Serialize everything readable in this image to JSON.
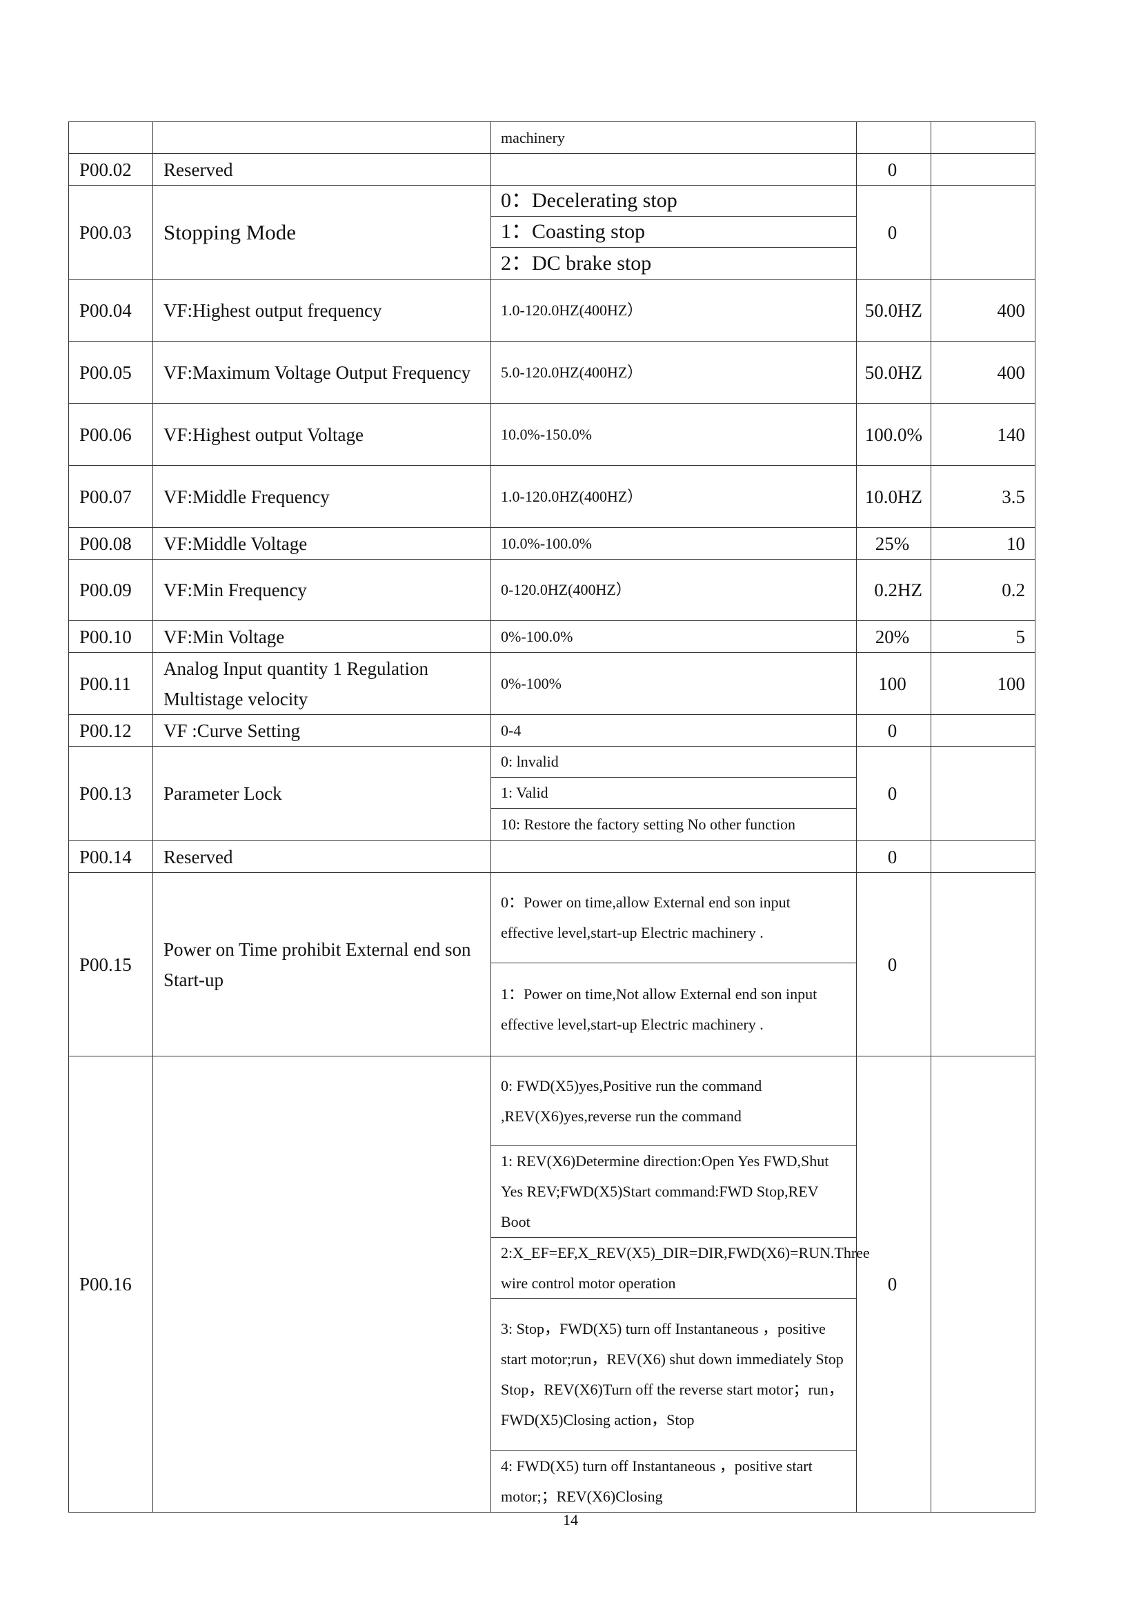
{
  "table": {
    "rows": [
      {
        "code": "",
        "name": "",
        "range": [
          "machinery"
        ],
        "default": "",
        "factory": ""
      },
      {
        "code": "P00.02",
        "name": "Reserved",
        "range": [],
        "default": "0",
        "factory": ""
      },
      {
        "code": "P00.03",
        "name": "Stopping Mode",
        "range": [
          "0：Decelerating stop",
          "1：Coasting stop",
          "2：DC brake stop"
        ],
        "default": "0",
        "factory": ""
      },
      {
        "code": "P00.04",
        "name": "VF:Highest output frequency",
        "range": [
          "1.0-120.0HZ(400HZ）"
        ],
        "default": "50.0HZ",
        "factory": "400"
      },
      {
        "code": "P00.05",
        "name": "VF:Maximum Voltage Output Frequency",
        "range": [
          "5.0-120.0HZ(400HZ）"
        ],
        "default": "50.0HZ",
        "factory": "400"
      },
      {
        "code": "P00.06",
        "name": "VF:Highest output Voltage",
        "range": [
          "10.0%-150.0%"
        ],
        "default": "100.0%",
        "factory": "140"
      },
      {
        "code": "P00.07",
        "name": "VF:Middle Frequency",
        "range": [
          "1.0-120.0HZ(400HZ）"
        ],
        "default": "10.0HZ",
        "factory": "3.5"
      },
      {
        "code": "P00.08",
        "name": "VF:Middle Voltage",
        "range": [
          "10.0%-100.0%"
        ],
        "default": "25%",
        "factory": "10"
      },
      {
        "code": "P00.09",
        "name": "VF:Min Frequency",
        "range": [
          "0-120.0HZ(400HZ）"
        ],
        "default": "0.2HZ",
        "factory": "0.2"
      },
      {
        "code": "P00.10",
        "name": "VF:Min Voltage",
        "range": [
          "0%-100.0%"
        ],
        "default": "20%",
        "factory": "5"
      },
      {
        "code": "P00.11",
        "name": "Analog Input quantity 1 Regulation Multistage velocity",
        "range": [
          "0%-100%"
        ],
        "default": "100",
        "factory": "100"
      },
      {
        "code": "P00.12",
        "name": "VF :Curve Setting",
        "range": [
          "0-4"
        ],
        "default": "0",
        "factory": ""
      },
      {
        "code": "P00.13",
        "name": "Parameter Lock",
        "range": [
          "0:    lnvalid",
          "1:    Valid",
          "10: Restore the factory setting No other function"
        ],
        "default": "0",
        "factory": ""
      },
      {
        "code": "P00.14",
        "name": "Reserved",
        "range": [],
        "default": "0",
        "factory": ""
      },
      {
        "code": "P00.15",
        "name": "Power on Time prohibit External end son Start-up",
        "range": [
          "0：Power on time,allow External end    son input effective level,start-up Electric machinery .",
          "1：Power on time,Not allow    External end son input effective level,start-up Electric machinery ."
        ],
        "default": "0",
        "factory": ""
      },
      {
        "code": "P00.16",
        "name": "",
        "range": [
          "0: FWD(X5)yes,Positive run the command ,REV(X6)yes,reverse run the command",
          "1: REV(X6)Determine direction:Open Yes FWD,Shut Yes REV;FWD(X5)Start command:FWD Stop,REV Boot",
          "2:X_EF=EF,X_REV(X5)_DIR=DIR,FWD(X6)=RUN.Three wire control motor operation",
          "3: Stop，FWD(X5) turn off Instantaneous ，positive start motor;run，REV(X6) shut down immediately Stop\nStop，REV(X6)Turn off the reverse start motor；run，FWD(X5)Closing action，Stop",
          "4: FWD(X5) turn off Instantaneous ，positive start motor;；REV(X6)Closing"
        ],
        "default": "0",
        "factory": ""
      }
    ]
  },
  "footer": {
    "page_number": "14"
  }
}
